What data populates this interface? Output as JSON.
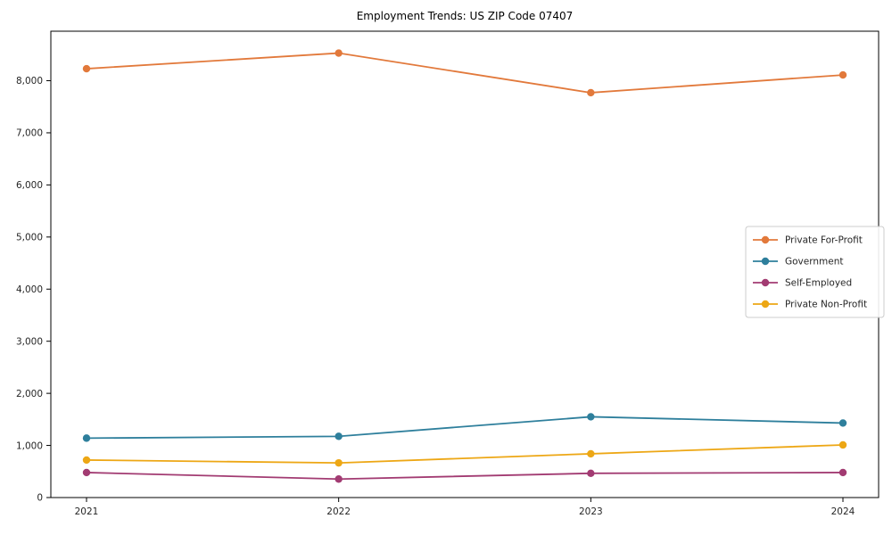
{
  "chart_data": {
    "type": "line",
    "title": "Employment Trends: US ZIP Code 07407",
    "xlabel": "",
    "ylabel": "",
    "x": [
      "2021",
      "2022",
      "2023",
      "2024"
    ],
    "series": [
      {
        "name": "Private For-Profit",
        "color": "#e2793b",
        "values": [
          8230,
          8530,
          7770,
          8110
        ]
      },
      {
        "name": "Government",
        "color": "#2e7f9c",
        "values": [
          1140,
          1175,
          1550,
          1430
        ]
      },
      {
        "name": "Self-Employed",
        "color": "#a23b72",
        "values": [
          480,
          355,
          465,
          480
        ]
      },
      {
        "name": "Private Non-Profit",
        "color": "#eda715",
        "values": [
          720,
          665,
          840,
          1010
        ]
      }
    ],
    "ylim": [
      0,
      8950
    ],
    "yticks": [
      0,
      1000,
      2000,
      3000,
      4000,
      5000,
      6000,
      7000,
      8000
    ],
    "grid": false,
    "legend_position": "center right",
    "marker": "circle",
    "frame": true
  }
}
